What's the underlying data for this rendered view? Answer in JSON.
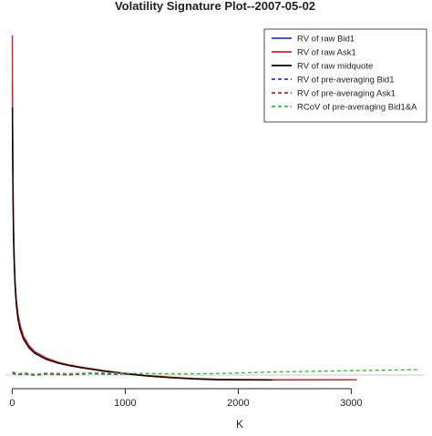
{
  "chart_data": {
    "type": "line",
    "title": "Volatility Signature Plot--2007-05-02",
    "xlabel": "K",
    "ylabel": "",
    "xlim": [
      -60,
      3650
    ],
    "ylim": [
      0,
      14
    ],
    "x_ticks": [
      0,
      1000,
      2000,
      3000
    ],
    "x_tick_labels": [
      "0",
      "1000",
      "2000",
      "3000"
    ],
    "legend_position": "top-right",
    "series": [
      {
        "name": "RV of raw Bid1",
        "color": "#1f3fd6",
        "dash": "solid",
        "x": [
          1,
          3,
          5,
          8,
          12,
          18,
          25,
          35,
          50,
          70,
          100,
          150,
          200,
          300,
          400,
          500,
          600,
          800,
          1000,
          1200,
          1400,
          1600,
          1800,
          2000,
          2300,
          2600,
          3000
        ],
        "y": [
          11.6,
          10.0,
          8.4,
          7.0,
          5.7,
          4.6,
          3.8,
          3.1,
          2.5,
          2.05,
          1.65,
          1.3,
          1.08,
          0.85,
          0.7,
          0.6,
          0.52,
          0.38,
          0.27,
          0.18,
          0.12,
          0.07,
          0.04,
          0.03,
          0.02,
          0.02,
          0.03
        ]
      },
      {
        "name": "RV of raw Ask1",
        "color": "#d62020",
        "dash": "solid",
        "x": [
          1,
          2,
          3,
          5,
          8,
          12,
          18,
          25,
          35,
          50,
          70,
          100,
          150,
          200,
          300,
          400,
          500,
          600,
          800,
          1000,
          1200,
          1400,
          1600,
          1800,
          2000,
          2300,
          2600,
          3000,
          3050
        ],
        "y": [
          13.4,
          12.2,
          10.4,
          8.7,
          7.2,
          5.9,
          4.75,
          3.9,
          3.2,
          2.6,
          2.15,
          1.72,
          1.35,
          1.12,
          0.88,
          0.72,
          0.61,
          0.53,
          0.39,
          0.28,
          0.19,
          0.13,
          0.08,
          0.05,
          0.04,
          0.03,
          0.03,
          0.03,
          0.03
        ]
      },
      {
        "name": "RV of raw midquote",
        "color": "#000000",
        "dash": "solid",
        "x": [
          1,
          3,
          5,
          8,
          12,
          18,
          25,
          35,
          50,
          70,
          100,
          150,
          200,
          300,
          400,
          500,
          600,
          800,
          1000,
          1200,
          1400,
          1600,
          1800,
          2000,
          2300
        ],
        "y": [
          10.6,
          9.3,
          7.9,
          6.6,
          5.4,
          4.4,
          3.65,
          3.0,
          2.4,
          1.98,
          1.6,
          1.26,
          1.05,
          0.82,
          0.68,
          0.58,
          0.5,
          0.37,
          0.26,
          0.17,
          0.11,
          0.06,
          0.03,
          0.02,
          0.02
        ]
      },
      {
        "name": "RV of pre-averaging Bid1",
        "color": "#1f3fd6",
        "dash": "dashed",
        "x": [
          1,
          50,
          100,
          200,
          300,
          500,
          700,
          900,
          1000
        ],
        "y": [
          0.28,
          0.22,
          0.26,
          0.2,
          0.25,
          0.22,
          0.27,
          0.24,
          0.26
        ]
      },
      {
        "name": "RV of pre-averaging Ask1",
        "color": "#d62020",
        "dash": "dashed",
        "x": [
          1,
          50,
          100,
          200,
          300,
          500,
          700,
          900,
          1000
        ],
        "y": [
          0.3,
          0.24,
          0.28,
          0.22,
          0.27,
          0.24,
          0.29,
          0.26,
          0.28
        ]
      },
      {
        "name": "RCoV of pre-averaging Bid1&A",
        "color": "#2ec42e",
        "dash": "dashed",
        "x": [
          1,
          50,
          100,
          200,
          300,
          500,
          800,
          1000,
          1200,
          1500,
          1800,
          2000,
          2300,
          2600,
          3000,
          3300,
          3600
        ],
        "y": [
          0.34,
          0.26,
          0.3,
          0.24,
          0.29,
          0.27,
          0.3,
          0.28,
          0.27,
          0.26,
          0.27,
          0.29,
          0.33,
          0.35,
          0.38,
          0.4,
          0.42
        ]
      }
    ],
    "reference_line": {
      "y": 0.0,
      "x": [
        -60,
        3650
      ],
      "color": "#555555"
    }
  }
}
